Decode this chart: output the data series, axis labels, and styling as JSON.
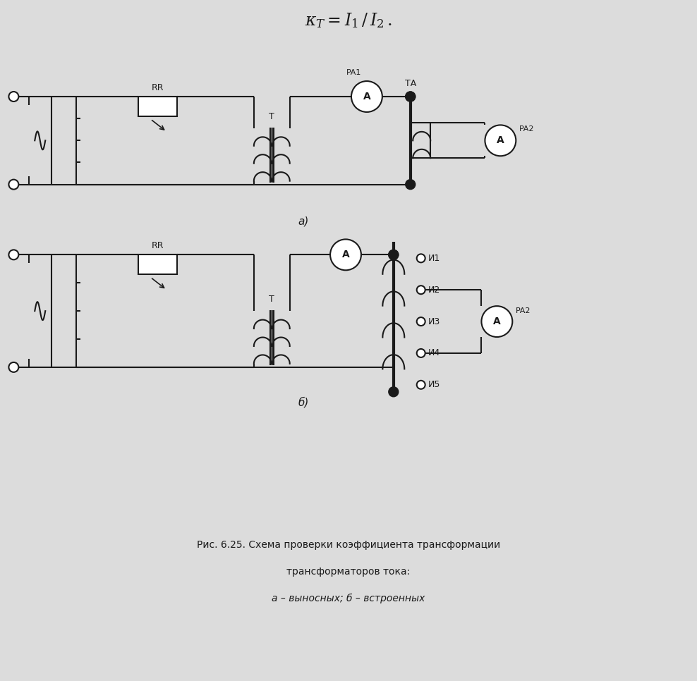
{
  "caption_line1": "Рис. 6.25. Схема проверки коэффициента трансформации",
  "caption_line2": "трансформаторов тока:",
  "caption_line3": "а – выносных; б – встроенных",
  "bg_color": "#dcdcdc",
  "line_color": "#1a1a1a"
}
